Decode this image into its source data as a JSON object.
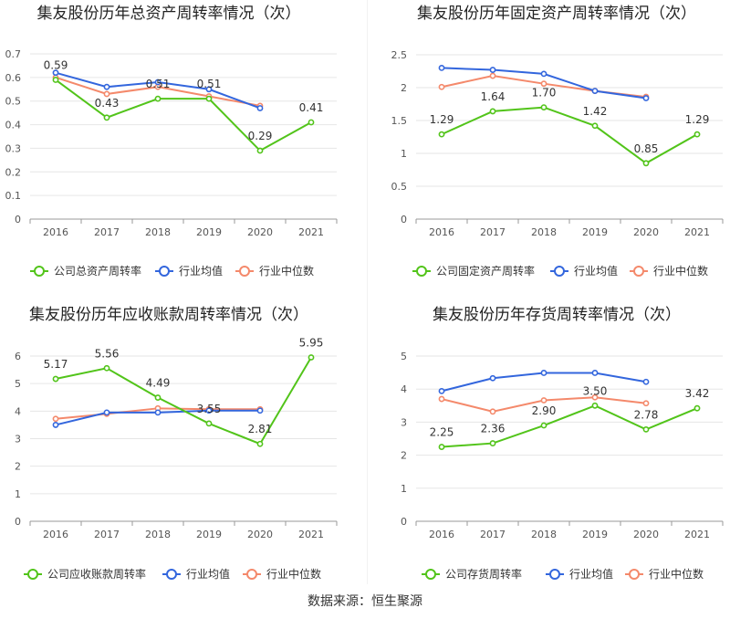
{
  "source": "数据来源：恒生聚源",
  "colors": {
    "company": "#52c41a",
    "avg": "#3366dd",
    "median": "#f4896b",
    "axis": "#999999",
    "grid": "#e6e6e6"
  },
  "chart_data": [
    {
      "type": "line",
      "title": "集友股份历年总资产周转率情况（次）",
      "categories": [
        "2016",
        "2017",
        "2018",
        "2019",
        "2020",
        "2021"
      ],
      "yticks": [
        "0",
        "0.1",
        "0.2",
        "0.3",
        "0.4",
        "0.5",
        "0.6",
        "0.7"
      ],
      "ylim": [
        0,
        0.7
      ],
      "data_labels": [
        "0.59",
        "0.43",
        "0.51",
        "0.51",
        "0.29",
        "0.41"
      ],
      "series": [
        {
          "name": "公司总资产周转率",
          "key": "company",
          "values": [
            0.59,
            0.43,
            0.51,
            0.51,
            0.29,
            0.41
          ]
        },
        {
          "name": "行业均值",
          "key": "avg",
          "values": [
            0.62,
            0.56,
            0.58,
            0.55,
            0.47,
            null
          ]
        },
        {
          "name": "行业中位数",
          "key": "median",
          "values": [
            0.6,
            0.53,
            0.56,
            0.52,
            0.48,
            null
          ]
        }
      ]
    },
    {
      "type": "line",
      "title": "集友股份历年固定资产周转率情况（次）",
      "categories": [
        "2016",
        "2017",
        "2018",
        "2019",
        "2020",
        "2021"
      ],
      "yticks": [
        "0",
        "0.5",
        "1",
        "1.5",
        "2",
        "2.5"
      ],
      "ylim": [
        0,
        2.5
      ],
      "data_labels": [
        "1.29",
        "1.64",
        "1.70",
        "1.42",
        "0.85",
        "1.29"
      ],
      "series": [
        {
          "name": "公司固定资产周转率",
          "key": "company",
          "values": [
            1.29,
            1.64,
            1.7,
            1.42,
            0.85,
            1.29
          ]
        },
        {
          "name": "行业均值",
          "key": "avg",
          "values": [
            2.3,
            2.27,
            2.21,
            1.95,
            1.84,
            null
          ]
        },
        {
          "name": "行业中位数",
          "key": "median",
          "values": [
            2.01,
            2.18,
            2.06,
            1.95,
            1.86,
            null
          ]
        }
      ]
    },
    {
      "type": "line",
      "title": "集友股份历年应收账款周转率情况（次）",
      "categories": [
        "2016",
        "2017",
        "2018",
        "2019",
        "2020",
        "2021"
      ],
      "yticks": [
        "0",
        "1",
        "2",
        "3",
        "4",
        "5",
        "6"
      ],
      "ylim": [
        0,
        6
      ],
      "data_labels": [
        "5.17",
        "5.56",
        "4.49",
        "3.55",
        "2.81",
        "5.95"
      ],
      "series": [
        {
          "name": "公司应收账款周转率",
          "key": "company",
          "values": [
            5.17,
            5.56,
            4.49,
            3.55,
            2.81,
            5.95
          ]
        },
        {
          "name": "行业均值",
          "key": "avg",
          "values": [
            3.5,
            3.95,
            3.95,
            4.02,
            4.02,
            null
          ]
        },
        {
          "name": "行业中位数",
          "key": "median",
          "values": [
            3.72,
            3.9,
            4.1,
            4.07,
            4.07,
            null
          ]
        }
      ]
    },
    {
      "type": "line",
      "title": "集友股份历年存货周转率情况（次）",
      "categories": [
        "2016",
        "2017",
        "2018",
        "2019",
        "2020",
        "2021"
      ],
      "yticks": [
        "0",
        "1",
        "2",
        "3",
        "4",
        "5"
      ],
      "ylim": [
        0,
        5
      ],
      "data_labels": [
        "2.25",
        "2.36",
        "2.90",
        "3.50",
        "2.78",
        "3.42"
      ],
      "series": [
        {
          "name": "公司存货周转率",
          "key": "company",
          "values": [
            2.25,
            2.36,
            2.9,
            3.5,
            2.78,
            3.42
          ]
        },
        {
          "name": "行业均值",
          "key": "avg",
          "values": [
            3.94,
            4.33,
            4.49,
            4.49,
            4.22,
            null
          ]
        },
        {
          "name": "行业中位数",
          "key": "median",
          "values": [
            3.7,
            3.32,
            3.66,
            3.75,
            3.57,
            null
          ]
        }
      ]
    }
  ]
}
